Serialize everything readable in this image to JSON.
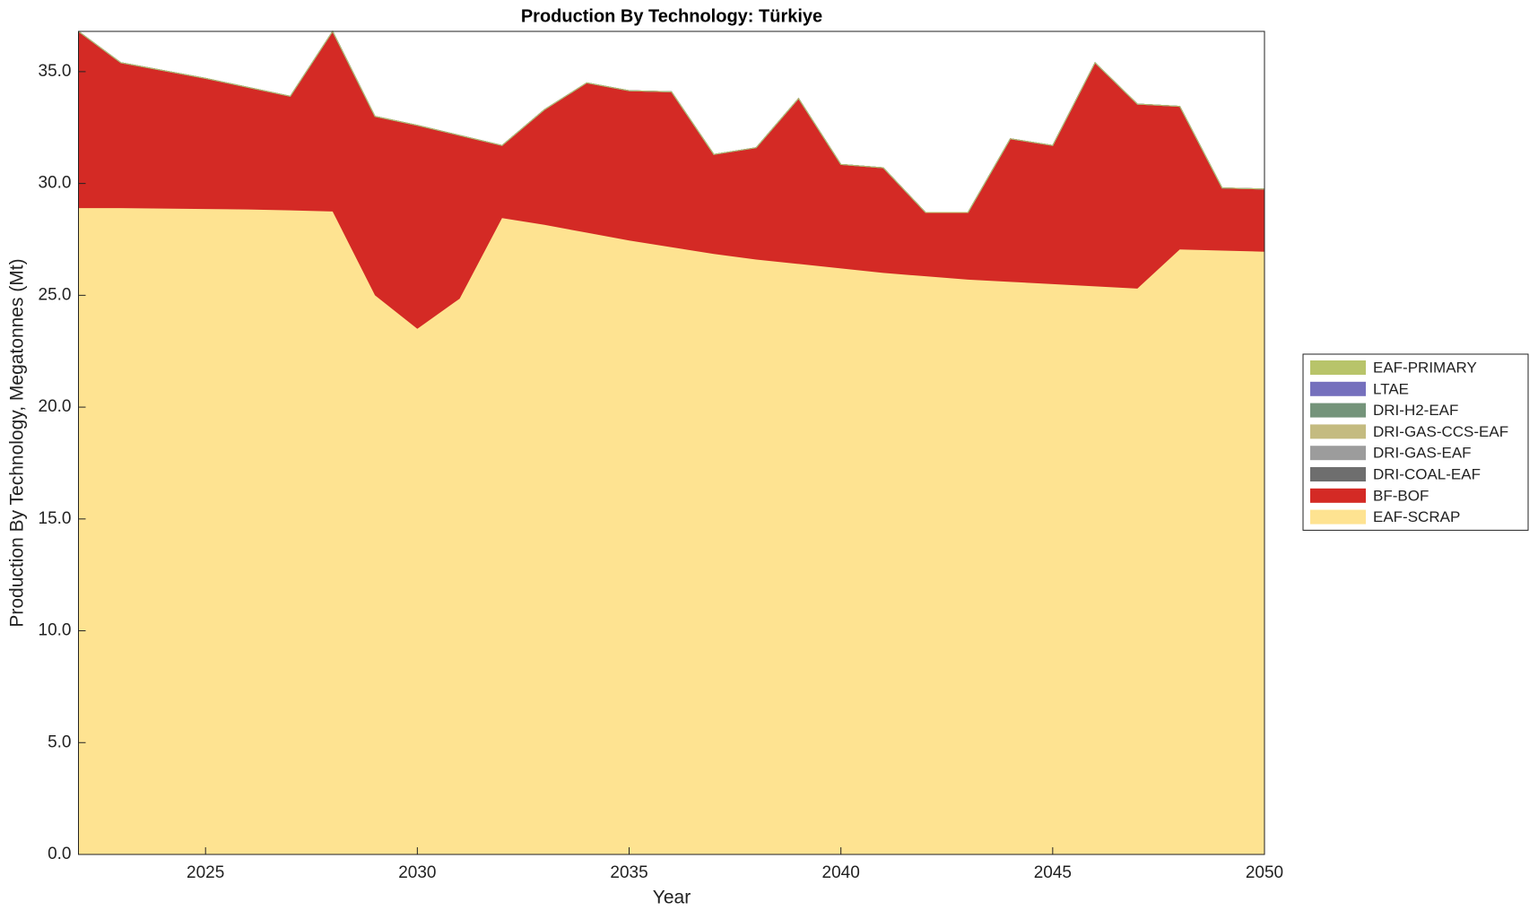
{
  "chart_data": {
    "type": "stacked-area",
    "title": "Production By Technology: Türkiye",
    "xlabel": "Year",
    "ylabel": "Production By Technology, Megatonnes (Mt)",
    "x": [
      2022,
      2023,
      2024,
      2025,
      2026,
      2027,
      2028,
      2029,
      2030,
      2031,
      2032,
      2033,
      2034,
      2035,
      2036,
      2037,
      2038,
      2039,
      2040,
      2041,
      2042,
      2043,
      2044,
      2045,
      2046,
      2047,
      2048,
      2049,
      2050
    ],
    "series": [
      {
        "name": "EAF-SCRAP",
        "color": "#fee391",
        "values": [
          28.9,
          28.9,
          28.88,
          28.86,
          28.84,
          28.8,
          28.75,
          25.0,
          23.5,
          24.85,
          28.45,
          28.15,
          27.8,
          27.45,
          27.15,
          26.85,
          26.6,
          26.4,
          26.2,
          26.0,
          25.85,
          25.7,
          25.6,
          25.5,
          25.4,
          25.3,
          27.05,
          27.0,
          26.95
        ]
      },
      {
        "name": "BF-BOF",
        "color": "#d42a25",
        "values": [
          7.9,
          6.5,
          6.17,
          5.84,
          5.46,
          5.1,
          8.05,
          8.0,
          9.1,
          7.3,
          3.25,
          5.15,
          6.7,
          6.7,
          6.95,
          4.45,
          5.0,
          7.4,
          4.65,
          4.7,
          2.85,
          3.0,
          6.4,
          6.2,
          10.0,
          8.25,
          6.4,
          2.8,
          2.8
        ]
      },
      {
        "name": "DRI-COAL-EAF",
        "color": "#6e6e6e",
        "values": [
          0,
          0,
          0,
          0,
          0,
          0,
          0,
          0,
          0,
          0,
          0,
          0,
          0,
          0,
          0,
          0,
          0,
          0,
          0,
          0,
          0,
          0,
          0,
          0,
          0,
          0,
          0,
          0,
          0
        ]
      },
      {
        "name": "DRI-GAS-EAF",
        "color": "#9c9c9c",
        "values": [
          0,
          0,
          0,
          0,
          0,
          0,
          0,
          0,
          0,
          0,
          0,
          0,
          0,
          0,
          0,
          0,
          0,
          0,
          0,
          0,
          0,
          0,
          0,
          0,
          0,
          0,
          0,
          0,
          0
        ]
      },
      {
        "name": "DRI-GAS-CCS-EAF",
        "color": "#c4bb80",
        "values": [
          0,
          0,
          0,
          0,
          0,
          0,
          0,
          0,
          0,
          0,
          0,
          0,
          0,
          0,
          0,
          0,
          0,
          0,
          0,
          0,
          0,
          0,
          0,
          0,
          0,
          0,
          0,
          0,
          0
        ]
      },
      {
        "name": "DRI-H2-EAF",
        "color": "#74947a",
        "values": [
          0,
          0,
          0,
          0,
          0,
          0,
          0,
          0,
          0,
          0,
          0,
          0,
          0,
          0,
          0,
          0,
          0,
          0,
          0,
          0,
          0,
          0,
          0,
          0,
          0,
          0,
          0,
          0,
          0
        ]
      },
      {
        "name": "LTAE",
        "color": "#7570bd",
        "values": [
          0,
          0,
          0,
          0,
          0,
          0,
          0,
          0,
          0,
          0,
          0,
          0,
          0,
          0,
          0,
          0,
          0,
          0,
          0,
          0,
          0,
          0,
          0,
          0,
          0,
          0,
          0,
          0,
          0
        ]
      },
      {
        "name": "EAF-PRIMARY",
        "color": "#b8c46a",
        "values": [
          0,
          0,
          0,
          0,
          0,
          0,
          0,
          0,
          0,
          0,
          0,
          0,
          0,
          0,
          0,
          0,
          0,
          0,
          0,
          0,
          0,
          0,
          0,
          0,
          0,
          0,
          0,
          0,
          0
        ]
      }
    ],
    "xlim": [
      2022,
      2050
    ],
    "xticks": [
      2025,
      2030,
      2035,
      2040,
      2045,
      2050
    ],
    "ylim": [
      0,
      36.8
    ],
    "yticks": [
      {
        "value": 0,
        "label": "0.0"
      },
      {
        "value": 5,
        "label": "5.0"
      },
      {
        "value": 10,
        "label": "10.0"
      },
      {
        "value": 15,
        "label": "15.0"
      },
      {
        "value": 20,
        "label": "20.0"
      },
      {
        "value": 25,
        "label": "25.0"
      },
      {
        "value": 30,
        "label": "30.0"
      },
      {
        "value": 35,
        "label": "35.0"
      }
    ],
    "legend": "right"
  }
}
